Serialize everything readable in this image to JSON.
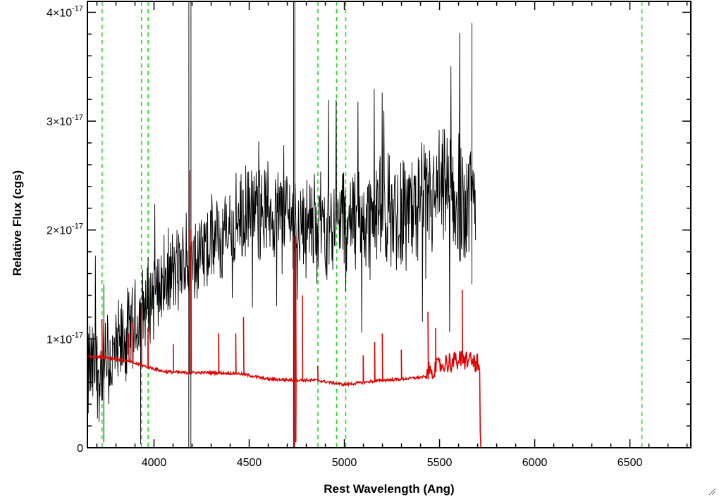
{
  "chart_data": {
    "type": "line",
    "xlabel": "Rest Wavelength (Ang)",
    "ylabel": "Relative Flux (cgs)",
    "xlim": [
      3650,
      6820
    ],
    "ylim": [
      0,
      4.1e-17
    ],
    "x_ticks": [
      4000,
      4500,
      5000,
      5500,
      6000,
      6500
    ],
    "y_ticks": [
      {
        "value": 0,
        "label": "0",
        "exp": ""
      },
      {
        "value": 1e-17,
        "label": "1×10",
        "exp": "-17"
      },
      {
        "value": 2e-17,
        "label": "2×10",
        "exp": "-17"
      },
      {
        "value": 3e-17,
        "label": "3×10",
        "exp": "-17"
      },
      {
        "value": 4e-17,
        "label": "4×10",
        "exp": "-17"
      }
    ],
    "vertical_markers": [
      3727,
      3934,
      3969,
      4861,
      4959,
      5007,
      6563
    ],
    "series": [
      {
        "color": "#000000",
        "base_anchors": [
          [
            3650,
            7e-18
          ],
          [
            3720,
            7e-18
          ],
          [
            3800,
            8.5e-18
          ],
          [
            3900,
            1.1e-17
          ],
          [
            4000,
            1.45e-17
          ],
          [
            4100,
            1.6e-17
          ],
          [
            4200,
            1.7e-17
          ],
          [
            4300,
            1.85e-17
          ],
          [
            4400,
            2e-17
          ],
          [
            4500,
            2.15e-17
          ],
          [
            4600,
            2.2e-17
          ],
          [
            4700,
            2.15e-17
          ],
          [
            4800,
            2.05e-17
          ],
          [
            4900,
            2.05e-17
          ],
          [
            5000,
            2.1e-17
          ],
          [
            5100,
            2.1e-17
          ],
          [
            5200,
            2.15e-17
          ],
          [
            5300,
            2.2e-17
          ],
          [
            5400,
            2.2e-17
          ],
          [
            5500,
            2.3e-17
          ],
          [
            5600,
            2.3e-17
          ],
          [
            5690,
            2.25e-17
          ]
        ],
        "noise_anchors": [
          [
            3650,
            4.5e-18
          ],
          [
            3800,
            4e-18
          ],
          [
            4000,
            3.5e-18
          ],
          [
            4500,
            3.8e-18
          ],
          [
            5000,
            4.2e-18
          ],
          [
            5500,
            5e-18
          ],
          [
            5690,
            6e-18
          ]
        ],
        "spikes": [
          [
            4182,
            0,
            4.1e-17
          ],
          [
            4193,
            0,
            4.1e-17
          ],
          [
            4733,
            0,
            4.1e-17
          ],
          [
            4740,
            0,
            4.1e-17
          ],
          [
            3735,
            5e-19,
            1.5e-17
          ],
          [
            3930,
            3e-19,
            1.3e-17
          ],
          [
            5670,
            1.5e-17,
            3.9e-17
          ]
        ]
      },
      {
        "color": "#e00000",
        "anchors": [
          [
            3650,
            8.4e-18
          ],
          [
            3750,
            8.3e-18
          ],
          [
            3850,
            8e-18
          ],
          [
            3950,
            7.5e-18
          ],
          [
            4050,
            7e-18
          ],
          [
            4150,
            6.9e-18
          ],
          [
            4300,
            6.9e-18
          ],
          [
            4450,
            6.8e-18
          ],
          [
            4600,
            6.3e-18
          ],
          [
            4750,
            6.2e-18
          ],
          [
            4850,
            6.2e-18
          ],
          [
            5000,
            5.8e-18
          ],
          [
            5100,
            6e-18
          ],
          [
            5200,
            6.2e-18
          ],
          [
            5300,
            6.3e-18
          ],
          [
            5420,
            6.5e-18
          ],
          [
            5550,
            7.5e-18
          ],
          [
            5650,
            7.8e-18
          ],
          [
            5710,
            7.2e-18
          ],
          [
            5715,
            0
          ],
          [
            6820,
            0
          ]
        ],
        "spikes": [
          [
            3727,
            1.18e-17
          ],
          [
            3868,
            1.05e-17
          ],
          [
            3889,
            1.15e-17
          ],
          [
            3934,
            1.3e-17
          ],
          [
            3969,
            1.1e-17
          ],
          [
            4102,
            9.5e-18
          ],
          [
            4187,
            2.55e-17
          ],
          [
            4195,
            2e-17
          ],
          [
            4340,
            1.05e-17
          ],
          [
            4430,
            1.05e-17
          ],
          [
            4471,
            1.2e-17
          ],
          [
            4735,
            1.95e-17
          ],
          [
            4745,
            1.95e-17
          ],
          [
            4780,
            1.4e-17
          ],
          [
            4861,
            7.5e-18
          ],
          [
            5100,
            8.5e-18
          ],
          [
            5160,
            9.7e-18
          ],
          [
            5200,
            1.05e-17
          ],
          [
            5300,
            9e-18
          ],
          [
            5440,
            1.25e-17
          ],
          [
            5480,
            1.1e-17
          ],
          [
            5620,
            1.45e-17
          ]
        ],
        "drops": [
          [
            4735,
            0
          ],
          [
            4745,
            5e-19
          ]
        ]
      }
    ]
  }
}
